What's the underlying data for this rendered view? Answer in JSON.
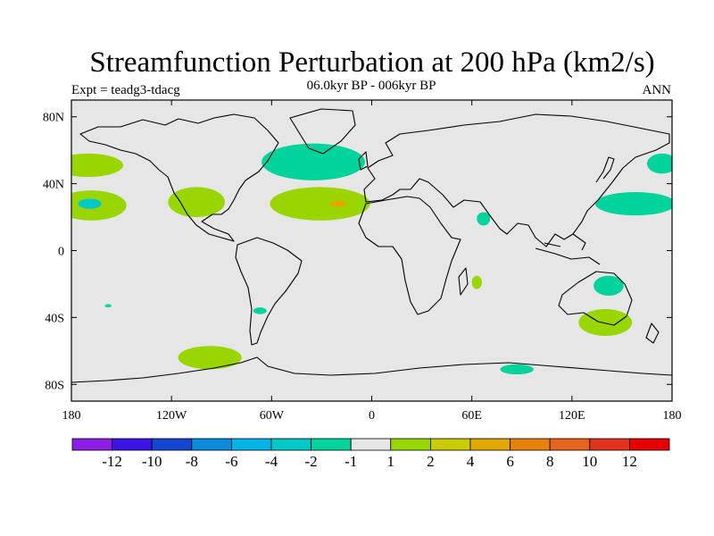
{
  "header": {
    "title": "Streamfunction Perturbation at 200 hPa (km2/s)",
    "left_label": "Expt = teadg3-tdacg",
    "center_label": "06.0kyr BP - 006kyr BP",
    "right_label": "ANN"
  },
  "map": {
    "projection": "cylindrical equidistant",
    "background_color": "#e6e6e6",
    "lon_range": [
      -180,
      180
    ],
    "lat_range": [
      -90,
      90
    ],
    "lat_ticks": [
      {
        "value": 80,
        "label": "80N"
      },
      {
        "value": 40,
        "label": "40N"
      },
      {
        "value": 0,
        "label": "0"
      },
      {
        "value": -40,
        "label": "40S"
      },
      {
        "value": -80,
        "label": "80S"
      }
    ],
    "lon_ticks": [
      {
        "value": -180,
        "label": "180"
      },
      {
        "value": -120,
        "label": "120W"
      },
      {
        "value": -60,
        "label": "60W"
      },
      {
        "value": 0,
        "label": "0"
      },
      {
        "value": 60,
        "label": "60E"
      },
      {
        "value": 120,
        "label": "120E"
      },
      {
        "value": 180,
        "label": "180"
      }
    ],
    "anomaly_regions": [
      {
        "name": "north-pacific-west-positive",
        "lon": -170,
        "lat": 51,
        "rlon": 21,
        "rlat": 7,
        "color": "#99d600"
      },
      {
        "name": "pacific-subtropical-positive",
        "lon": -168,
        "lat": 27,
        "rlon": 21,
        "rlat": 9,
        "color": "#99d600"
      },
      {
        "name": "pacific-subtropical-core",
        "lon": -169,
        "lat": 28,
        "rlon": 7,
        "rlat": 3,
        "color": "#00c8c8"
      },
      {
        "name": "north-america-positive",
        "lon": -105,
        "lat": 29,
        "rlon": 17,
        "rlat": 9,
        "color": "#99d600"
      },
      {
        "name": "north-atlantic-negative",
        "lon": -35,
        "lat": 53,
        "rlon": 31,
        "rlat": 11,
        "color": "#00d49c"
      },
      {
        "name": "atlantic-subtropical-positive",
        "lon": -31,
        "lat": 28,
        "rlon": 30,
        "rlat": 10,
        "color": "#99d600"
      },
      {
        "name": "atlantic-subtropical-core",
        "lon": -20,
        "lat": 28,
        "rlon": 5,
        "rlat": 2,
        "color": "#e1a800"
      },
      {
        "name": "arabian-sea-negative",
        "lon": 67,
        "lat": 19,
        "rlon": 4,
        "rlat": 4,
        "color": "#00d49c"
      },
      {
        "name": "indian-ocean-positive",
        "lon": 63,
        "lat": -19,
        "rlon": 3,
        "rlat": 4,
        "color": "#99d600"
      },
      {
        "name": "west-pacific-subtropical-negative",
        "lon": 158,
        "lat": 28,
        "rlon": 24,
        "rlat": 7,
        "color": "#00d49c"
      },
      {
        "name": "north-pacific-east-negative",
        "lon": 174,
        "lat": 52,
        "rlon": 9,
        "rlat": 6,
        "color": "#00d49c"
      },
      {
        "name": "australia-negative",
        "lon": 142,
        "lat": -21,
        "rlon": 9,
        "rlat": 6,
        "color": "#00d49c"
      },
      {
        "name": "south-indian-ocean-positive",
        "lon": 140,
        "lat": -43,
        "rlon": 16,
        "rlat": 8,
        "color": "#99d600"
      },
      {
        "name": "south-america-negative",
        "lon": -67,
        "lat": -36,
        "rlon": 4,
        "rlat": 2,
        "color": "#00d49c"
      },
      {
        "name": "south-pacific-dot-negative",
        "lon": -158,
        "lat": -33,
        "rlon": 2,
        "rlat": 1,
        "color": "#00d49c"
      },
      {
        "name": "southern-ocean-pacific-positive",
        "lon": -97,
        "lat": -64,
        "rlon": 19,
        "rlat": 7,
        "color": "#99d600"
      },
      {
        "name": "southern-ocean-indian-negative",
        "lon": 87,
        "lat": -71,
        "rlon": 10,
        "rlat": 3,
        "color": "#00d49c"
      }
    ]
  },
  "colorbar": {
    "colors": [
      "#8d1ee6",
      "#3c14e6",
      "#1446d2",
      "#0a8cdc",
      "#00b4e6",
      "#00c8c8",
      "#00d49c",
      "#e6e6e6",
      "#99d600",
      "#c8cc00",
      "#e1a800",
      "#e6820a",
      "#e6641e",
      "#e1321e",
      "#e60000"
    ],
    "labels": [
      "-12",
      "-10",
      "-8",
      "-6",
      "-4",
      "-2",
      "-1",
      "1",
      "2",
      "4",
      "6",
      "8",
      "10",
      "12"
    ]
  }
}
